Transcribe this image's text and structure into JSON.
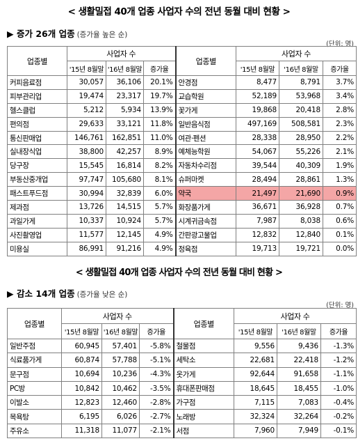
{
  "title": "< 생활밀접 40개 업종 사업자 수의 전년 동월 대비 현황 >",
  "increase": {
    "heading": "▶ 증가 26개 업종",
    "subheading": "(증가율 높은 순)",
    "unit": "(단위: 명)",
    "headers": {
      "industry": "업종별",
      "business_count": "사업자 수",
      "y2015": "'15년 8월말",
      "y2016": "'16년 8월말",
      "rate": "증가율"
    },
    "rows": [
      {
        "l": {
          "name": "커피음료점",
          "v15": "30,057",
          "v16": "36,106",
          "rate": "20.1%"
        },
        "r": {
          "name": "안경점",
          "v15": "8,477",
          "v16": "8,791",
          "rate": "3.7%"
        }
      },
      {
        "l": {
          "name": "피부관리업",
          "v15": "19,474",
          "v16": "23,317",
          "rate": "19.7%"
        },
        "r": {
          "name": "교습학원",
          "v15": "52,189",
          "v16": "53,968",
          "rate": "3.4%"
        }
      },
      {
        "l": {
          "name": "헬스클럽",
          "v15": "5,212",
          "v16": "5,934",
          "rate": "13.9%"
        },
        "r": {
          "name": "꽃가게",
          "v15": "19,868",
          "v16": "20,418",
          "rate": "2.8%"
        }
      },
      {
        "l": {
          "name": "편의점",
          "v15": "29,633",
          "v16": "33,121",
          "rate": "11.8%"
        },
        "r": {
          "name": "일반음식점",
          "v15": "497,169",
          "v16": "508,581",
          "rate": "2.3%"
        }
      },
      {
        "l": {
          "name": "통신판매업",
          "v15": "146,761",
          "v16": "162,851",
          "rate": "11.0%"
        },
        "r": {
          "name": "여관·펜션",
          "v15": "28,338",
          "v16": "28,950",
          "rate": "2.2%"
        }
      },
      {
        "l": {
          "name": "실내장식업",
          "v15": "38,800",
          "v16": "42,257",
          "rate": "8.9%"
        },
        "r": {
          "name": "예체능학원",
          "v15": "54,067",
          "v16": "55,226",
          "rate": "2.1%"
        }
      },
      {
        "l": {
          "name": "당구장",
          "v15": "15,545",
          "v16": "16,814",
          "rate": "8.2%"
        },
        "r": {
          "name": "자동차수리점",
          "v15": "39,544",
          "v16": "40,309",
          "rate": "1.9%"
        }
      },
      {
        "l": {
          "name": "부동산중개업",
          "v15": "97,747",
          "v16": "105,680",
          "rate": "8.1%"
        },
        "r": {
          "name": "슈퍼마켓",
          "v15": "28,494",
          "v16": "28,861",
          "rate": "1.3%"
        }
      },
      {
        "l": {
          "name": "패스트푸드점",
          "v15": "30,994",
          "v16": "32,839",
          "rate": "6.0%"
        },
        "r": {
          "name": "약국",
          "v15": "21,497",
          "v16": "21,690",
          "rate": "0.9%"
        },
        "highlight_right": true
      },
      {
        "l": {
          "name": "제과점",
          "v15": "13,726",
          "v16": "14,515",
          "rate": "5.7%"
        },
        "r": {
          "name": "화장품가게",
          "v15": "36,671",
          "v16": "36,928",
          "rate": "0.7%"
        }
      },
      {
        "l": {
          "name": "과일가게",
          "v15": "10,337",
          "v16": "10,924",
          "rate": "5.7%"
        },
        "r": {
          "name": "시계귀금속점",
          "v15": "7,987",
          "v16": "8,038",
          "rate": "0.6%"
        }
      },
      {
        "l": {
          "name": "사진촬영업",
          "v15": "11,577",
          "v16": "12,145",
          "rate": "4.9%"
        },
        "r": {
          "name": "간판광고물업",
          "v15": "12,832",
          "v16": "12,840",
          "rate": "0.1%"
        }
      },
      {
        "l": {
          "name": "미용실",
          "v15": "86,991",
          "v16": "91,216",
          "rate": "4.9%"
        },
        "r": {
          "name": "정육점",
          "v15": "19,713",
          "v16": "19,721",
          "rate": "0.0%"
        }
      }
    ]
  },
  "decrease": {
    "title": "< 생활밀접 40개 업종 사업자 수의 전년 동월 대비 현황 >",
    "heading": "▶ 감소 14개 업종",
    "subheading": "(증가율 낮은 순)",
    "unit": "(단위: 명)",
    "headers": {
      "industry": "업종별",
      "business_count": "사업자 수",
      "y2015": "'15년 8월말",
      "y2016": "'16년 8월말",
      "rate": "증가율"
    },
    "rows": [
      {
        "l": {
          "name": "일반주점",
          "v15": "60,945",
          "v16": "57,401",
          "rate": "-5.8%"
        },
        "r": {
          "name": "철물점",
          "v15": "9,556",
          "v16": "9,436",
          "rate": "-1.3%"
        }
      },
      {
        "l": {
          "name": "식료품가게",
          "v15": "60,874",
          "v16": "57,788",
          "rate": "-5.1%"
        },
        "r": {
          "name": "세탁소",
          "v15": "22,681",
          "v16": "22,418",
          "rate": "-1.2%"
        }
      },
      {
        "l": {
          "name": "문구점",
          "v15": "10,694",
          "v16": "10,236",
          "rate": "-4.3%"
        },
        "r": {
          "name": "옷가게",
          "v15": "92,644",
          "v16": "91,658",
          "rate": "-1.1%"
        }
      },
      {
        "l": {
          "name": "PC방",
          "v15": "10,842",
          "v16": "10,462",
          "rate": "-3.5%"
        },
        "r": {
          "name": "휴대폰판매점",
          "v15": "18,645",
          "v16": "18,455",
          "rate": "-1.0%"
        }
      },
      {
        "l": {
          "name": "이발소",
          "v15": "12,823",
          "v16": "12,460",
          "rate": "-2.8%"
        },
        "r": {
          "name": "가구점",
          "v15": "7,115",
          "v16": "7,083",
          "rate": "-0.4%"
        }
      },
      {
        "l": {
          "name": "목욕탕",
          "v15": "6,195",
          "v16": "6,026",
          "rate": "-2.7%"
        },
        "r": {
          "name": "노래방",
          "v15": "32,324",
          "v16": "32,264",
          "rate": "-0.2%"
        }
      },
      {
        "l": {
          "name": "주유소",
          "v15": "11,318",
          "v16": "11,077",
          "rate": "-2.1%"
        },
        "r": {
          "name": "서점",
          "v15": "7,960",
          "v16": "7,949",
          "rate": "-0.1%"
        }
      }
    ]
  }
}
